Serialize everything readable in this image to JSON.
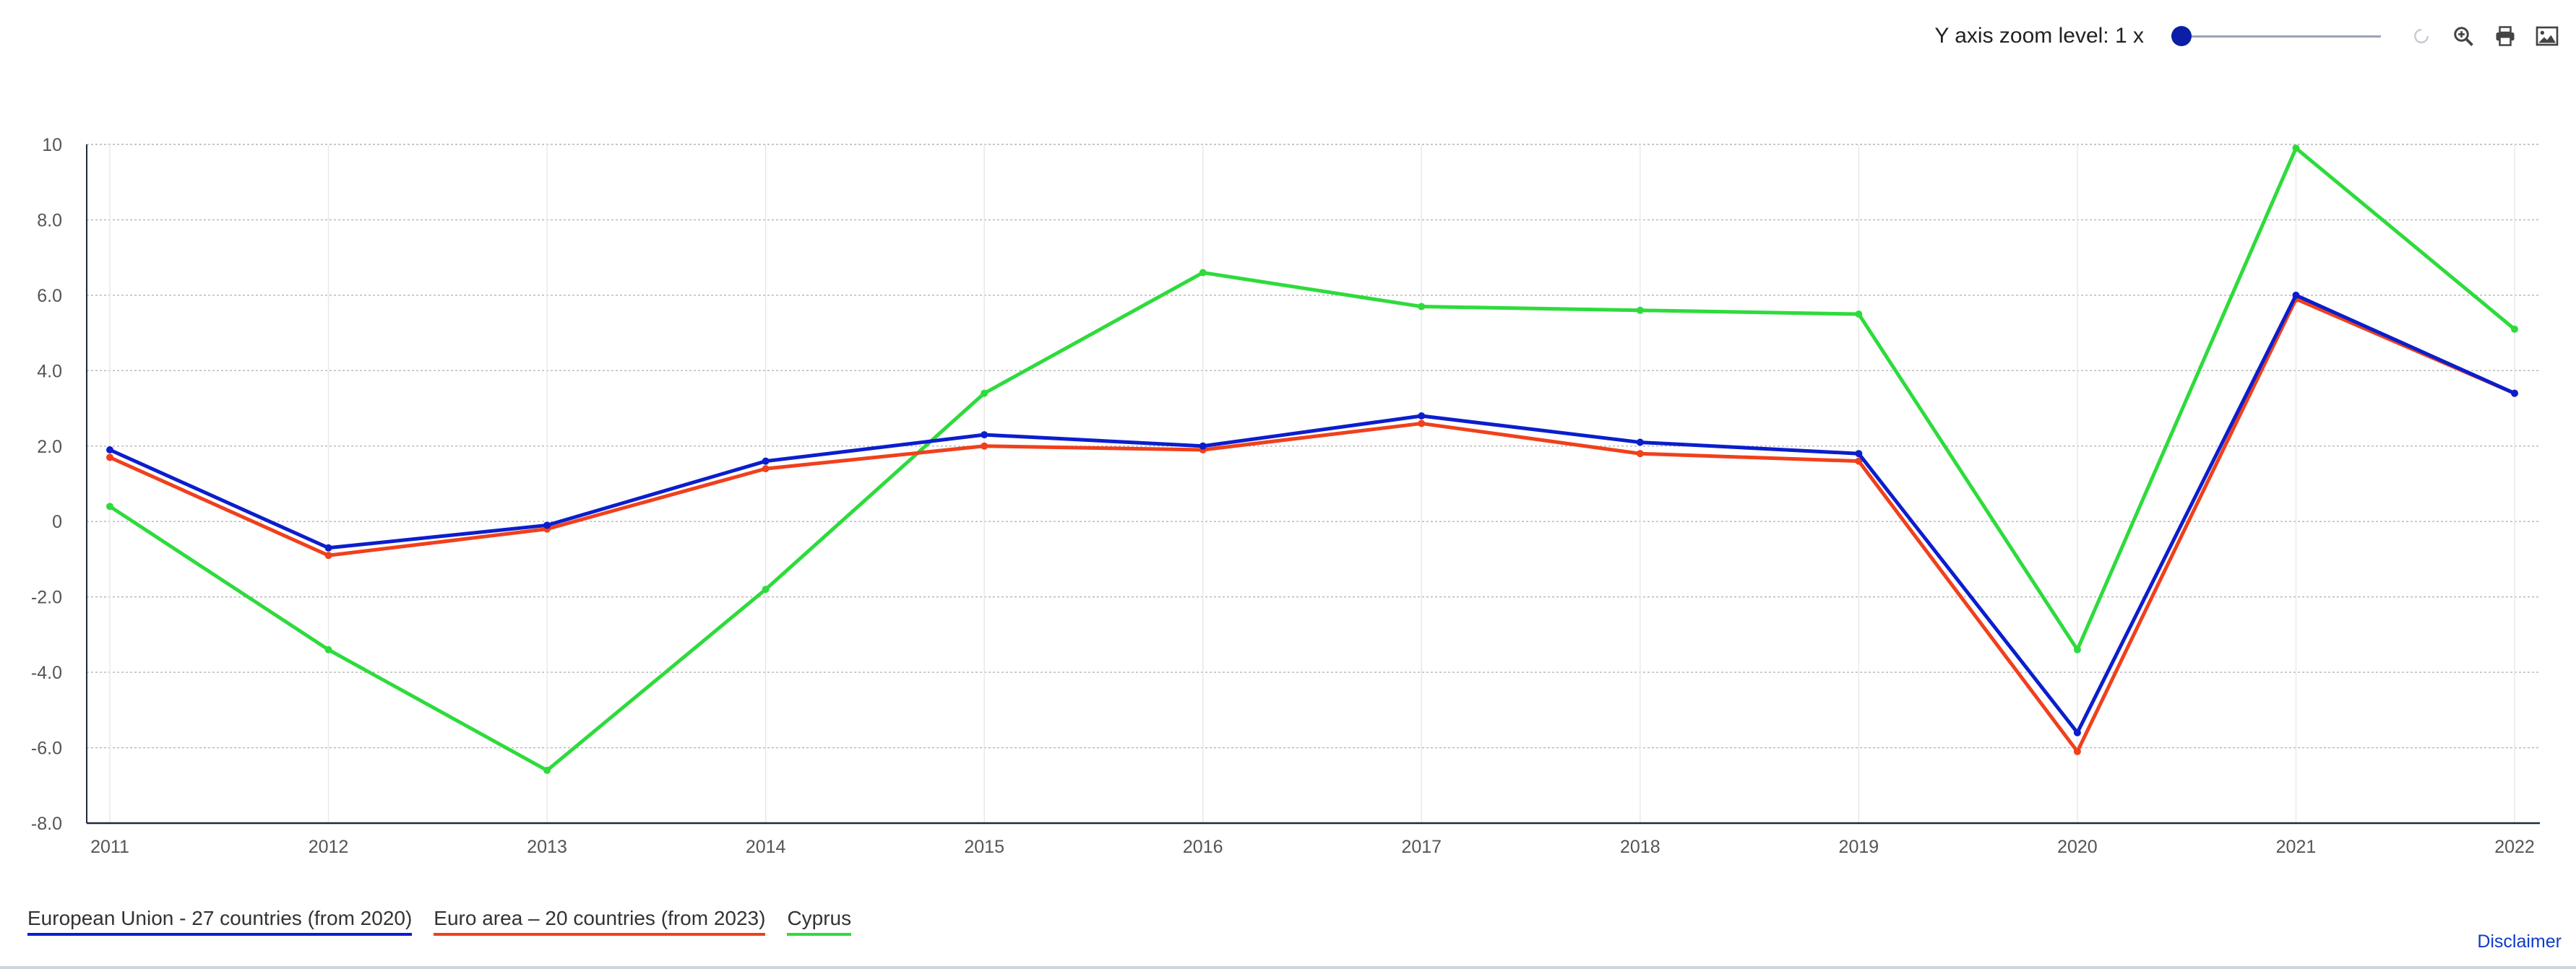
{
  "toolbar": {
    "zoom_label": "Y axis zoom level: 1 x",
    "zoom_level": 1,
    "icons": [
      "reset-zoom-icon",
      "zoom-in-icon",
      "print-icon",
      "download-image-icon"
    ]
  },
  "chart_data": {
    "type": "line",
    "x": [
      2011,
      2012,
      2013,
      2014,
      2015,
      2016,
      2017,
      2018,
      2019,
      2020,
      2021,
      2022
    ],
    "x_tick_labels": [
      "2011",
      "2012",
      "2013",
      "2014",
      "2015",
      "2016",
      "2017",
      "2018",
      "2019",
      "2020",
      "2021",
      "2022"
    ],
    "ylim": [
      -8,
      10
    ],
    "y_ticks": [
      10,
      8,
      6,
      4,
      2,
      0,
      -2,
      -4,
      -6,
      -8
    ],
    "y_tick_labels": [
      "10",
      "8.0",
      "6.0",
      "4.0",
      "2.0",
      "0",
      "-2.0",
      "-4.0",
      "-6.0",
      "-8.0"
    ],
    "grid": true,
    "legend_position": "bottom-left",
    "series": [
      {
        "name": "European Union - 27 countries (from 2020)",
        "color": "#0b1ecc",
        "values": [
          1.9,
          -0.7,
          -0.1,
          1.6,
          2.3,
          2.0,
          2.8,
          2.1,
          1.8,
          -5.6,
          6.0,
          3.4
        ]
      },
      {
        "name": "Euro area – 20 countries (from 2023)",
        "color": "#f0401c",
        "values": [
          1.7,
          -0.9,
          -0.2,
          1.4,
          2.0,
          1.9,
          2.6,
          1.8,
          1.6,
          -6.1,
          5.9,
          3.4
        ]
      },
      {
        "name": "Cyprus",
        "color": "#2edb3c",
        "values": [
          0.4,
          -3.4,
          -6.6,
          -1.8,
          3.4,
          6.6,
          5.7,
          5.6,
          5.5,
          -3.4,
          9.9,
          5.1
        ]
      }
    ]
  },
  "disclaimer_label": "Disclaimer"
}
